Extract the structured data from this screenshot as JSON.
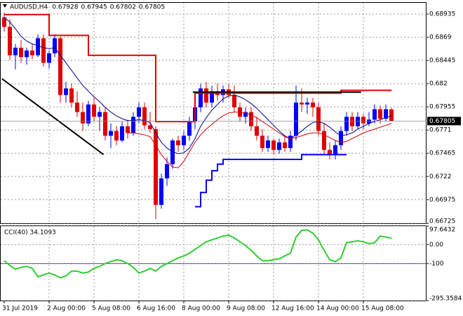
{
  "chart_data": [
    {
      "type": "candlestick",
      "title": "AUDUSD,H4",
      "header_values": [
        0.67928,
        0.67945,
        0.67802,
        0.67805
      ],
      "last_price": 0.67805,
      "up_color": "#0000ff",
      "down_color": "#e00000",
      "grid": true,
      "ylim": [
        0.66725,
        0.69054
      ],
      "yticks": [
        0.68935,
        0.6869,
        0.68445,
        0.682,
        0.67955,
        0.6771,
        0.67465,
        0.6722,
        0.66975,
        0.66725
      ],
      "xticks": [
        {
          "value": 0,
          "label": "31 Jul 2019"
        },
        {
          "value": 8,
          "label": "2 Aug 00:00"
        },
        {
          "value": 16,
          "label": "5 Aug 08:00"
        },
        {
          "value": 24,
          "label": "6 Aug 16:00"
        },
        {
          "value": 32,
          "label": "8 Aug 00:00"
        },
        {
          "value": 40,
          "label": "9 Aug 08:00"
        },
        {
          "value": 48,
          "label": "12 Aug 16:00"
        },
        {
          "value": 56,
          "label": "14 Aug 00:00"
        },
        {
          "value": 64,
          "label": "15 Aug 08:00"
        }
      ],
      "open": [
        0.689,
        0.688,
        0.685,
        0.6858,
        0.6848,
        0.6855,
        0.685,
        0.6868,
        0.6842,
        0.6852,
        0.6868,
        0.6808,
        0.6815,
        0.68,
        0.679,
        0.6778,
        0.6798,
        0.6785,
        0.679,
        0.6765,
        0.677,
        0.676,
        0.6775,
        0.6768,
        0.6785,
        0.6795,
        0.6776,
        0.6772,
        0.6692,
        0.672,
        0.6735,
        0.676,
        0.6755,
        0.6765,
        0.678,
        0.6795,
        0.6815,
        0.68,
        0.6812,
        0.6808,
        0.6814,
        0.6808,
        0.6795,
        0.6785,
        0.679,
        0.6775,
        0.6765,
        0.6752,
        0.676,
        0.675,
        0.6758,
        0.6752,
        0.6765,
        0.68,
        0.6798,
        0.68,
        0.6795,
        0.677,
        0.675,
        0.6745,
        0.6755,
        0.677,
        0.6785,
        0.6775,
        0.6785,
        0.6778,
        0.6782,
        0.6793,
        0.6783,
        0.67928
      ],
      "high": [
        0.6895,
        0.6888,
        0.6862,
        0.6866,
        0.6858,
        0.6862,
        0.6872,
        0.6872,
        0.6855,
        0.6872,
        0.687,
        0.6822,
        0.682,
        0.6812,
        0.68,
        0.6802,
        0.6805,
        0.6795,
        0.6795,
        0.6778,
        0.6775,
        0.678,
        0.6782,
        0.679,
        0.68,
        0.68,
        0.679,
        0.6775,
        0.6725,
        0.6742,
        0.6762,
        0.6765,
        0.677,
        0.6785,
        0.68,
        0.682,
        0.6822,
        0.6818,
        0.682,
        0.6818,
        0.682,
        0.6818,
        0.68,
        0.6795,
        0.6795,
        0.6785,
        0.6772,
        0.6765,
        0.6762,
        0.6762,
        0.6764,
        0.677,
        0.6818,
        0.6815,
        0.6805,
        0.6805,
        0.68,
        0.6778,
        0.6758,
        0.676,
        0.6775,
        0.679,
        0.679,
        0.679,
        0.6788,
        0.679,
        0.6798,
        0.6797,
        0.6798,
        0.67945
      ],
      "low": [
        0.6875,
        0.6845,
        0.6835,
        0.6842,
        0.684,
        0.6846,
        0.6848,
        0.6838,
        0.6836,
        0.6848,
        0.68,
        0.68,
        0.6795,
        0.6785,
        0.677,
        0.6775,
        0.678,
        0.677,
        0.676,
        0.6752,
        0.6755,
        0.6758,
        0.6762,
        0.6765,
        0.6778,
        0.6772,
        0.6768,
        0.6677,
        0.6688,
        0.6712,
        0.673,
        0.6748,
        0.675,
        0.676,
        0.6772,
        0.679,
        0.6795,
        0.6795,
        0.6802,
        0.68,
        0.6805,
        0.679,
        0.678,
        0.6778,
        0.677,
        0.676,
        0.6748,
        0.6748,
        0.6745,
        0.6746,
        0.6748,
        0.6748,
        0.676,
        0.679,
        0.6788,
        0.6785,
        0.6765,
        0.6745,
        0.674,
        0.674,
        0.675,
        0.6765,
        0.677,
        0.6772,
        0.6772,
        0.6775,
        0.6778,
        0.6778,
        0.678,
        0.67802
      ],
      "close": [
        0.688,
        0.685,
        0.6858,
        0.6848,
        0.6855,
        0.685,
        0.6868,
        0.6842,
        0.6852,
        0.6868,
        0.6808,
        0.6815,
        0.68,
        0.679,
        0.6778,
        0.6798,
        0.6785,
        0.679,
        0.6765,
        0.677,
        0.676,
        0.6775,
        0.6768,
        0.6785,
        0.6795,
        0.6776,
        0.6772,
        0.6692,
        0.672,
        0.6735,
        0.676,
        0.6755,
        0.6765,
        0.678,
        0.6795,
        0.6815,
        0.68,
        0.6812,
        0.6808,
        0.6814,
        0.6808,
        0.6795,
        0.6785,
        0.679,
        0.6775,
        0.6765,
        0.6752,
        0.676,
        0.675,
        0.6758,
        0.6752,
        0.6765,
        0.68,
        0.6798,
        0.68,
        0.6795,
        0.677,
        0.675,
        0.6745,
        0.6755,
        0.677,
        0.6785,
        0.6775,
        0.6785,
        0.6778,
        0.6782,
        0.6793,
        0.6783,
        0.6793,
        0.67805
      ],
      "series": [
        {
          "color": "#00008b",
          "width": 1,
          "values": [
            0.689,
            0.6885,
            0.6878,
            0.687,
            0.6865,
            0.6862,
            0.686,
            0.6858,
            0.6857,
            0.6858,
            0.685,
            0.6842,
            0.6834,
            0.6826,
            0.6818,
            0.6812,
            0.6806,
            0.6801,
            0.6795,
            0.679,
            0.6786,
            0.6783,
            0.6781,
            0.6781,
            0.6782,
            0.6781,
            0.6779,
            0.6768,
            0.6758,
            0.6752,
            0.6748,
            0.6746,
            0.6747,
            0.6752,
            0.6762,
            0.6775,
            0.6784,
            0.6792,
            0.6798,
            0.6804,
            0.6807,
            0.6808,
            0.6806,
            0.6803,
            0.6799,
            0.6794,
            0.6788,
            0.6782,
            0.6776,
            0.677,
            0.6765,
            0.6762,
            0.6766,
            0.677,
            0.6775,
            0.6779,
            0.678,
            0.6778,
            0.6774,
            0.6769,
            0.6765,
            0.6766,
            0.6768,
            0.6772,
            0.6775,
            0.6778,
            0.678,
            0.6782,
            0.6784,
            0.6786
          ]
        },
        {
          "color": "#d00000",
          "width": 1,
          "values": [
            null,
            null,
            null,
            null,
            null,
            null,
            null,
            null,
            null,
            null,
            null,
            null,
            null,
            null,
            null,
            null,
            null,
            null,
            null,
            null,
            null,
            null,
            0.6768,
            0.6768,
            0.6767,
            0.6766,
            0.6764,
            0.6755,
            0.6745,
            0.6738,
            0.6732,
            0.6731,
            0.6738,
            0.6748,
            0.6758,
            0.6766,
            0.6772,
            0.6777,
            0.6782,
            0.6786,
            0.6789,
            0.679,
            0.679,
            0.6789,
            0.6787,
            0.6784,
            0.678,
            0.6776,
            0.6772,
            0.6768,
            0.6764,
            0.6762,
            0.6763,
            0.6765,
            0.6767,
            0.6768,
            0.6768,
            0.6766,
            0.6763,
            0.676,
            0.6758,
            0.6759,
            0.6762,
            0.6765,
            0.6768,
            0.677,
            0.6772,
            0.6774,
            0.6776,
            0.6778
          ]
        },
        {
          "color": "#e00000",
          "width": 2,
          "step": true,
          "values": [
            0.6893,
            0.6893,
            0.6893,
            0.6893,
            0.6893,
            0.6893,
            0.6893,
            0.6893,
            0.6871,
            0.6871,
            0.6871,
            0.6871,
            0.6871,
            0.6871,
            0.6871,
            0.685,
            0.685,
            0.685,
            0.685,
            0.685,
            0.685,
            0.685,
            0.685,
            0.685,
            0.685,
            0.685,
            0.685,
            0.678,
            0.678,
            0.678,
            0.678,
            0.678,
            0.678,
            0.678,
            0.681,
            0.681,
            0.681,
            0.681,
            0.681,
            0.681,
            0.681,
            0.681,
            0.681,
            0.681,
            0.681,
            0.681,
            0.681,
            0.681,
            0.681,
            0.681,
            0.681,
            0.681,
            0.681,
            0.681,
            0.681,
            0.681,
            0.681,
            0.681,
            0.681,
            0.681,
            0.6813,
            0.6813,
            0.6813,
            0.6813,
            0.6813,
            0.6813,
            0.6813,
            0.6813,
            0.6813,
            0.6813
          ]
        },
        {
          "color": "#0000ff",
          "width": 2,
          "step": true,
          "values": [
            null,
            null,
            null,
            null,
            null,
            null,
            null,
            null,
            null,
            null,
            null,
            null,
            null,
            null,
            null,
            null,
            null,
            null,
            null,
            null,
            null,
            null,
            null,
            null,
            null,
            null,
            null,
            null,
            null,
            null,
            null,
            null,
            null,
            null,
            0.669,
            0.6705,
            0.6718,
            0.6728,
            0.6735,
            0.674,
            0.674,
            0.674,
            0.674,
            0.674,
            0.674,
            0.674,
            0.674,
            0.674,
            0.674,
            0.674,
            0.674,
            0.674,
            0.674,
            0.6745,
            0.6745,
            0.6745,
            0.6745,
            0.6745,
            0.6745,
            0.6745,
            0.6745,
            0.6745,
            null,
            null,
            null,
            null,
            null,
            null,
            null,
            null
          ]
        }
      ],
      "trendlines": [
        {
          "x": [
            -0.4,
            17.7
          ],
          "y": [
            0.68252,
            0.67451
          ]
        },
        {
          "x": [
            33.6,
            63.6
          ],
          "y": [
            0.6811,
            0.6811
          ]
        }
      ]
    },
    {
      "type": "line",
      "title": "CCI(40) 34.1093",
      "color": "#32cd32",
      "grid": true,
      "ylim": [
        -295.3584,
        97.6432
      ],
      "yticks": [
        97.6432,
        {
          "value": 0,
          "label": "0.00"
        },
        -100,
        -295.3584
      ],
      "level_color": "#00008b",
      "values": [
        -85,
        -110,
        -130,
        -120,
        -115,
        -125,
        -170,
        -160,
        -150,
        -160,
        -175,
        -165,
        -140,
        -140,
        -150,
        -145,
        -125,
        -115,
        -100,
        -90,
        -80,
        -85,
        -100,
        -120,
        -150,
        -140,
        -125,
        -140,
        -115,
        -100,
        -85,
        -70,
        -60,
        -45,
        -25,
        -5,
        15,
        25,
        35,
        45,
        50,
        35,
        15,
        -5,
        -30,
        -60,
        -85,
        -85,
        -80,
        -75,
        -60,
        -45,
        40,
        75,
        78,
        60,
        25,
        -30,
        -80,
        -90,
        -70,
        10,
        15,
        20,
        15,
        5,
        10,
        45,
        40,
        34.1093
      ]
    }
  ]
}
